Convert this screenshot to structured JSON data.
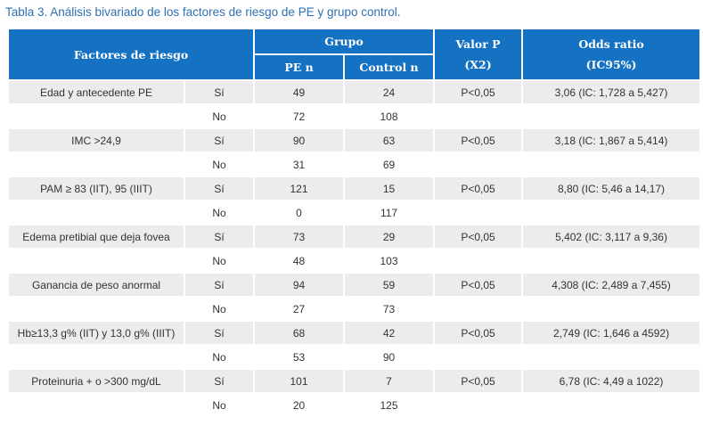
{
  "caption": "Tabla 3. Análisis bivariado de los factores de riesgo de PE y grupo control.",
  "headers": {
    "factores": "Factores de riesgo",
    "grupo": "Grupo",
    "pe_n": "PE n",
    "control_n": "Control n",
    "valor_p_line1": "Valor P",
    "valor_p_line2": "(X2)",
    "odds_line1": "Odds ratio",
    "odds_line2": "(IC95%)"
  },
  "rows": [
    {
      "factor": "Edad y antecedente PE",
      "answer": "Sí",
      "pe": "49",
      "control": "24",
      "p": "P<0,05",
      "odds": "3,06 (IC: 1,728 a 5,427)"
    },
    {
      "factor": "",
      "answer": "No",
      "pe": "72",
      "control": "108",
      "p": "",
      "odds": ""
    },
    {
      "factor": "IMC >24,9",
      "answer": "Sí",
      "pe": "90",
      "control": "63",
      "p": "P<0,05",
      "odds": "3,18 (IC: 1,867 a 5,414)"
    },
    {
      "factor": "",
      "answer": "No",
      "pe": "31",
      "control": "69",
      "p": "",
      "odds": ""
    },
    {
      "factor": "PAM ≥ 83 (IIT), 95 (IIIT)",
      "answer": "Sí",
      "pe": "121",
      "control": "15",
      "p": "P<0,05",
      "odds": "8,80 (IC: 5,46 a 14,17)"
    },
    {
      "factor": "",
      "answer": "No",
      "pe": "0",
      "control": "117",
      "p": "",
      "odds": ""
    },
    {
      "factor": "Edema pretibial que deja fovea",
      "answer": "Sí",
      "pe": "73",
      "control": "29",
      "p": "P<0,05",
      "odds": "5,402 (IC: 3,117 a 9,36)"
    },
    {
      "factor": "",
      "answer": "No",
      "pe": "48",
      "control": "103",
      "p": "",
      "odds": ""
    },
    {
      "factor": "Ganancia de peso anormal",
      "answer": "Sí",
      "pe": "94",
      "control": "59",
      "p": "P<0,05",
      "odds": "4,308 (IC: 2,489 a 7,455)"
    },
    {
      "factor": "",
      "answer": "No",
      "pe": "27",
      "control": "73",
      "p": "",
      "odds": ""
    },
    {
      "factor": "Hb≥13,3 g% (IIT) y 13,0 g% (IIIT)",
      "answer": "Sí",
      "pe": "68",
      "control": "42",
      "p": "P<0,05",
      "odds": "2,749 (IC: 1,646 a 4592)"
    },
    {
      "factor": "",
      "answer": "No",
      "pe": "53",
      "control": "90",
      "p": "",
      "odds": ""
    },
    {
      "factor": "Proteinuria + o >300 mg/dL",
      "answer": "Sí",
      "pe": "101",
      "control": "7",
      "p": "P<0,05",
      "odds": "6,78 (IC: 4,49 a 1022)"
    },
    {
      "factor": "",
      "answer": "No",
      "pe": "20",
      "control": "125",
      "p": "",
      "odds": ""
    }
  ]
}
